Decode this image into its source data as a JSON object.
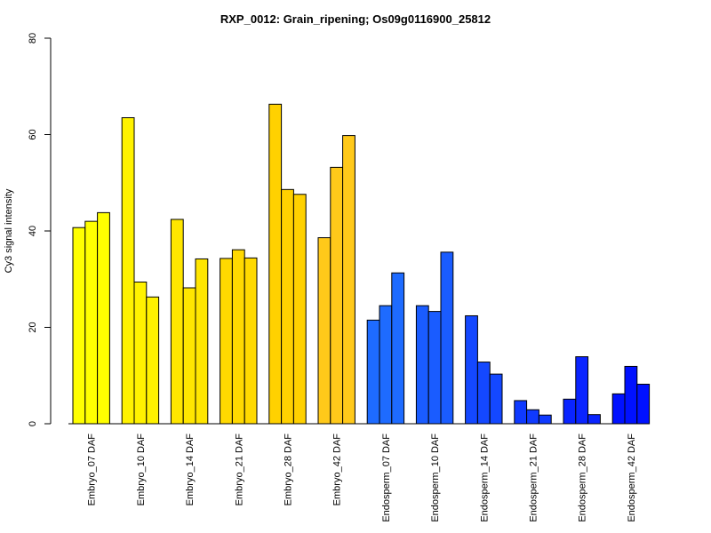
{
  "chart_data": {
    "type": "bar",
    "title": "RXP_0012: Grain_ripening; Os09g0116900_25812",
    "xlabel": "",
    "ylabel": "Cy3 signal intensity",
    "ylim": [
      0,
      80
    ],
    "yticks": [
      0,
      20,
      40,
      60,
      80
    ],
    "grid": false,
    "categories": [
      "Embryo_07 DAF",
      "Embryo_10 DAF",
      "Embryo_14 DAF",
      "Embryo_21 DAF",
      "Embryo_28 DAF",
      "Embryo_42 DAF",
      "Endosperm_07 DAF",
      "Endosperm_10 DAF",
      "Endosperm_14 DAF",
      "Endosperm_21 DAF",
      "Endosperm_28 DAF",
      "Endosperm_42 DAF"
    ],
    "colors": [
      "#ffff00",
      "#fff200",
      "#ffe600",
      "#ffd900",
      "#ffd100",
      "#ffc91a",
      "#1e6bff",
      "#1a5cff",
      "#1448ff",
      "#0f3aff",
      "#0a24ff",
      "#0011ff"
    ],
    "values": [
      [
        40.7,
        42.0,
        43.8
      ],
      [
        63.5,
        29.4,
        26.3
      ],
      [
        42.4,
        28.2,
        34.2
      ],
      [
        34.3,
        36.1,
        34.4
      ],
      [
        66.3,
        48.6,
        47.6
      ],
      [
        38.6,
        53.2,
        59.8
      ],
      [
        21.5,
        24.5,
        31.3
      ],
      [
        24.5,
        23.3,
        35.6
      ],
      [
        22.4,
        12.8,
        10.3
      ],
      [
        4.8,
        2.9,
        1.8
      ],
      [
        5.1,
        13.9,
        1.9
      ],
      [
        6.2,
        11.9,
        8.2
      ]
    ]
  }
}
